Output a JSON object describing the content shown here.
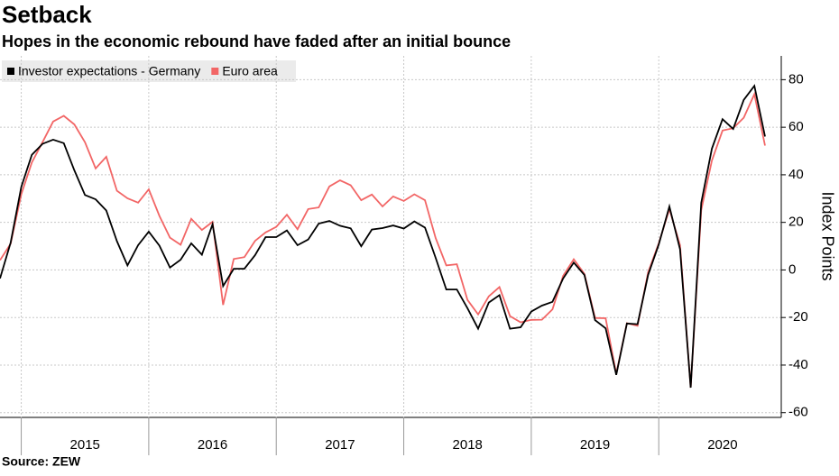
{
  "chart_data": {
    "type": "line",
    "title": "Setback",
    "subtitle": "Hopes in the economic rebound have faded after an initial bounce",
    "source": "Source: ZEW",
    "y_label": "Index Points",
    "categories": [
      null,
      null,
      null,
      null,
      null,
      null,
      null,
      null,
      "2015",
      null,
      null,
      null,
      null,
      null,
      null,
      null,
      null,
      null,
      null,
      null,
      "2016",
      null,
      null,
      null,
      null,
      null,
      null,
      null,
      null,
      null,
      null,
      null,
      "2017",
      null,
      null,
      null,
      null,
      null,
      null,
      null,
      null,
      null,
      null,
      null,
      "2018",
      null,
      null,
      null,
      null,
      null,
      null,
      null,
      null,
      null,
      null,
      null,
      "2019",
      null,
      null,
      null,
      null,
      null,
      null,
      null,
      null,
      null,
      null,
      null,
      "2020",
      null,
      null,
      null,
      null
    ],
    "series": [
      {
        "name": "Investor expectations - Germany",
        "color": "#000000",
        "values": [
          -3.6,
          11.5,
          34.9,
          48.4,
          53.0,
          54.8,
          53.3,
          41.9,
          31.5,
          29.7,
          25.0,
          12.1,
          1.9,
          10.4,
          16.1,
          10.2,
          1.0,
          4.3,
          11.2,
          6.4,
          19.2,
          -6.8,
          0.5,
          0.5,
          6.2,
          13.8,
          13.8,
          16.6,
          10.4,
          12.8,
          19.5,
          20.6,
          18.6,
          17.5,
          10.0,
          17.0,
          17.6,
          18.7,
          17.4,
          20.4,
          17.8,
          5.1,
          -8.2,
          -8.2,
          -16.1,
          -24.7,
          -13.7,
          -10.6,
          -24.7,
          -24.1,
          -17.5,
          -15.0,
          -13.4,
          -3.6,
          3.1,
          -2.1,
          -21.1,
          -24.5,
          -44.1,
          -22.5,
          -22.8,
          -2.1,
          10.7,
          26.7,
          8.7,
          -49.5,
          28.2,
          51.0,
          63.4,
          59.3,
          71.5,
          77.4,
          56.1
        ]
      },
      {
        "name": "Euro area",
        "color": "#f26666",
        "values": [
          4.1,
          11.0,
          31.8,
          45.2,
          53.7,
          62.4,
          64.8,
          61.2,
          53.7,
          42.7,
          47.6,
          33.3,
          30.1,
          28.3,
          33.9,
          22.7,
          13.6,
          10.6,
          21.5,
          16.8,
          20.2,
          -14.7,
          4.6,
          5.4,
          12.2,
          15.8,
          18.1,
          23.2,
          17.1,
          25.6,
          26.3,
          35.1,
          37.7,
          35.6,
          29.3,
          31.7,
          26.7,
          30.9,
          29.0,
          31.8,
          29.3,
          13.4,
          1.9,
          2.4,
          -12.6,
          -18.7,
          -11.1,
          -7.2,
          -19.4,
          -22.0,
          -21.0,
          -20.9,
          -16.6,
          -2.5,
          4.5,
          -1.6,
          -20.2,
          -20.3,
          -43.6,
          -22.4,
          -23.5,
          -1.0,
          11.2,
          25.6,
          10.4,
          -49.5,
          25.2,
          46.0,
          58.6,
          59.6,
          64.0,
          73.9,
          52.3
        ]
      }
    ],
    "ylim": [
      -62,
      90
    ],
    "yticks": [
      -60,
      -40,
      -20,
      0,
      20,
      40,
      60,
      80
    ],
    "grid": true,
    "legend": "top-left"
  }
}
